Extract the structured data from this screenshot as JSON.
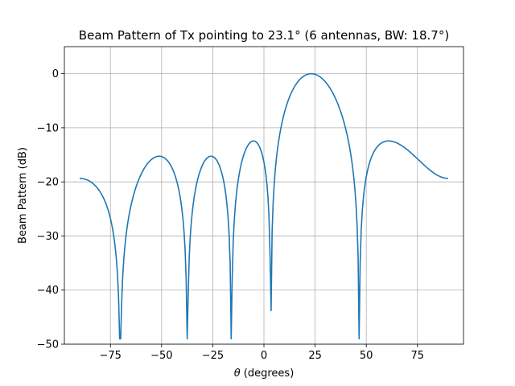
{
  "chart_data": {
    "type": "line",
    "title": "Beam Pattern of Tx pointing to 23.1° (6 antennas, BW: 18.7°)",
    "xlabel_symbol": "θ",
    "xlabel_text": " (degrees)",
    "ylabel": "Beam Pattern (dB)",
    "xlim": [
      -97.5,
      97.5
    ],
    "ylim": [
      -50,
      5
    ],
    "xticks": [
      -75,
      -50,
      -25,
      0,
      25,
      50,
      75
    ],
    "yticks": [
      0,
      -10,
      -20,
      -30,
      -40,
      -50
    ],
    "xtick_labels": [
      "−75",
      "−50",
      "−25",
      "0",
      "25",
      "50",
      "75"
    ],
    "ytick_labels": [
      "0",
      "−10",
      "−20",
      "−30",
      "−40",
      "−50"
    ],
    "grid": true,
    "color": "#1f77b4",
    "model": {
      "antennas": 6,
      "steer_deg": 23.1,
      "x_start": -90,
      "x_end": 90,
      "step": 0.5
    }
  }
}
